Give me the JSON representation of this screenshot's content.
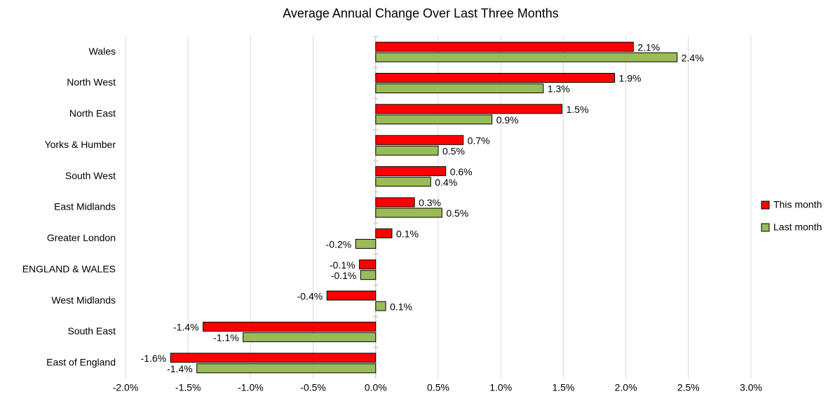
{
  "chart_data": {
    "type": "hbar",
    "title": "Average Annual Change Over Last Three Months",
    "categories": [
      "Wales",
      "North West",
      "North East",
      "Yorks & Humber",
      "South West",
      "East Midlands",
      "Greater London",
      "ENGLAND & WALES",
      "West Midlands",
      "South East",
      "East of England"
    ],
    "series": [
      {
        "name": "This month",
        "color": "#ff0000",
        "values": [
          2.06,
          1.91,
          1.49,
          0.7,
          0.56,
          0.31,
          0.13,
          -0.13,
          -0.39,
          -1.38,
          -1.64
        ],
        "value_labels": [
          "2.1%",
          "1.9%",
          "1.5%",
          "0.7%",
          "0.6%",
          "0.3%",
          "0.1%",
          "-0.1%",
          "-0.4%",
          "-1.4%",
          "-1.6%"
        ]
      },
      {
        "name": "Last month",
        "color": "#9bbb59",
        "values": [
          2.41,
          1.34,
          0.93,
          0.5,
          0.44,
          0.53,
          -0.16,
          -0.12,
          0.08,
          -1.06,
          -1.43
        ],
        "value_labels": [
          "2.4%",
          "1.3%",
          "0.9%",
          "0.5%",
          "0.4%",
          "0.5%",
          "-0.2%",
          "-0.1%",
          "0.1%",
          "-1.1%",
          "-1.4%"
        ]
      }
    ],
    "xlim": [
      -2,
      3
    ],
    "xticks": [
      {
        "value": -2,
        "label": "-2.0%"
      },
      {
        "value": -1.5,
        "label": "-1.5%"
      },
      {
        "value": -1,
        "label": "-1.0%"
      },
      {
        "value": -0.5,
        "label": "-0.5%"
      },
      {
        "value": 0,
        "label": "0.0%"
      },
      {
        "value": 0.5,
        "label": "0.5%"
      },
      {
        "value": 1,
        "label": "1.0%"
      },
      {
        "value": 1.5,
        "label": "1.5%"
      },
      {
        "value": 2,
        "label": "2.0%"
      },
      {
        "value": 2.5,
        "label": "2.5%"
      },
      {
        "value": 3,
        "label": "3.0%"
      }
    ],
    "grid": true,
    "legend": "right"
  }
}
